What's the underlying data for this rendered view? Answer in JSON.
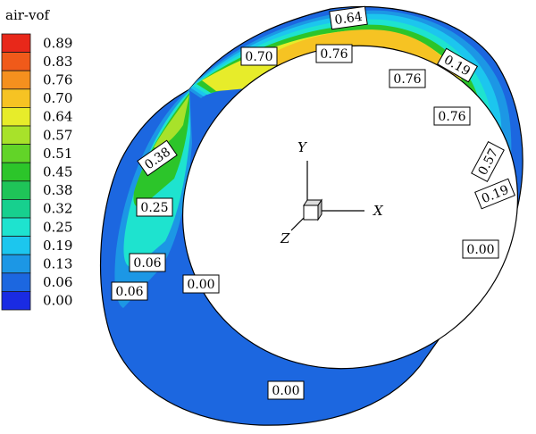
{
  "legend": {
    "title": "air-vof",
    "levels": [
      {
        "value": "0.89",
        "color": "#e8281a"
      },
      {
        "value": "0.83",
        "color": "#f05a1a"
      },
      {
        "value": "0.76",
        "color": "#f5901e"
      },
      {
        "value": "0.70",
        "color": "#f6c323"
      },
      {
        "value": "0.64",
        "color": "#e7ec2a"
      },
      {
        "value": "0.57",
        "color": "#a8e22a"
      },
      {
        "value": "0.51",
        "color": "#62d428"
      },
      {
        "value": "0.45",
        "color": "#2cc52a"
      },
      {
        "value": "0.38",
        "color": "#1fc458"
      },
      {
        "value": "0.32",
        "color": "#17d08e"
      },
      {
        "value": "0.25",
        "color": "#1ee3cf"
      },
      {
        "value": "0.19",
        "color": "#1cc6ee"
      },
      {
        "value": "0.13",
        "color": "#1c97e5"
      },
      {
        "value": "0.06",
        "color": "#1c67e0"
      },
      {
        "value": "0.00",
        "color": "#1a2be3"
      }
    ]
  },
  "axes": {
    "x": "X",
    "y": "Y",
    "z": "Z"
  },
  "contour_labels": [
    {
      "id": "top-064",
      "text": "0.64"
    },
    {
      "id": "top-070",
      "text": "0.70"
    },
    {
      "id": "top-076-a",
      "text": "0.76"
    },
    {
      "id": "top-076-b",
      "text": "0.76"
    },
    {
      "id": "right-019-a",
      "text": "0.19"
    },
    {
      "id": "right-076-c",
      "text": "0.76"
    },
    {
      "id": "left-038",
      "text": "0.38"
    },
    {
      "id": "right-057",
      "text": "0.57"
    },
    {
      "id": "right-019-b",
      "text": "0.19"
    },
    {
      "id": "left-025",
      "text": "0.25"
    },
    {
      "id": "right-000",
      "text": "0.00"
    },
    {
      "id": "left-006-a",
      "text": "0.06"
    },
    {
      "id": "left-006-b",
      "text": "0.06"
    },
    {
      "id": "left-000",
      "text": "0.00"
    },
    {
      "id": "bottom-000",
      "text": "0.00"
    }
  ]
}
